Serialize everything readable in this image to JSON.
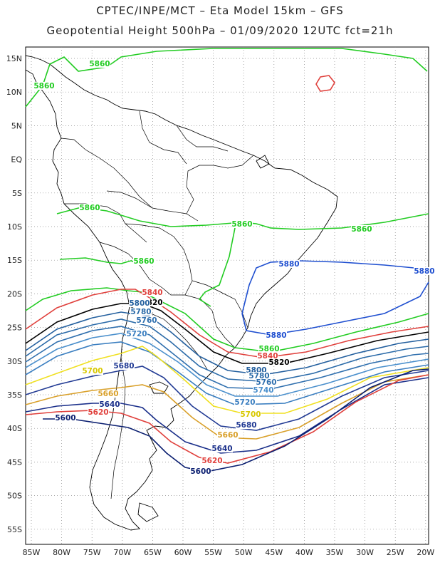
{
  "header": {
    "line1": "CPTEC/INPE/MCT –  Eta Model 15km – GFS",
    "line2": "Geopotential Height 500hPa – 01/09/2020 12UTC fct=21h"
  },
  "axes": {
    "lon_labels": [
      "85W",
      "80W",
      "75W",
      "70W",
      "65W",
      "60W",
      "55W",
      "50W",
      "45W",
      "40W",
      "35W",
      "30W",
      "25W",
      "20W"
    ],
    "lat_labels": [
      "15N",
      "10N",
      "5N",
      "EQ",
      "5S",
      "10S",
      "15S",
      "20S",
      "25S",
      "30S",
      "35S",
      "40S",
      "45S",
      "50S",
      "55S"
    ]
  },
  "contour_levels": [
    {
      "value": "5600",
      "color": "#0a1e70"
    },
    {
      "value": "5620",
      "color": "#e0403c"
    },
    {
      "value": "5640",
      "color": "#1a2f8a"
    },
    {
      "value": "5660",
      "color": "#d9a02a"
    },
    {
      "value": "5680",
      "color": "#223b94"
    },
    {
      "value": "5700",
      "color": "#f0e020"
    },
    {
      "value": "5720",
      "color": "#3a7ec0"
    },
    {
      "value": "5740",
      "color": "#4a8fcc"
    },
    {
      "value": "5760",
      "color": "#2f6fae"
    },
    {
      "value": "5780",
      "color": "#2a6aa8"
    },
    {
      "value": "5800",
      "color": "#235f9e"
    },
    {
      "value": "5820",
      "color": "#000000"
    },
    {
      "value": "5840",
      "color": "#e0403c"
    },
    {
      "value": "5860",
      "color": "#22cc22"
    },
    {
      "value": "5880",
      "color": "#1f4fd0"
    }
  ]
}
